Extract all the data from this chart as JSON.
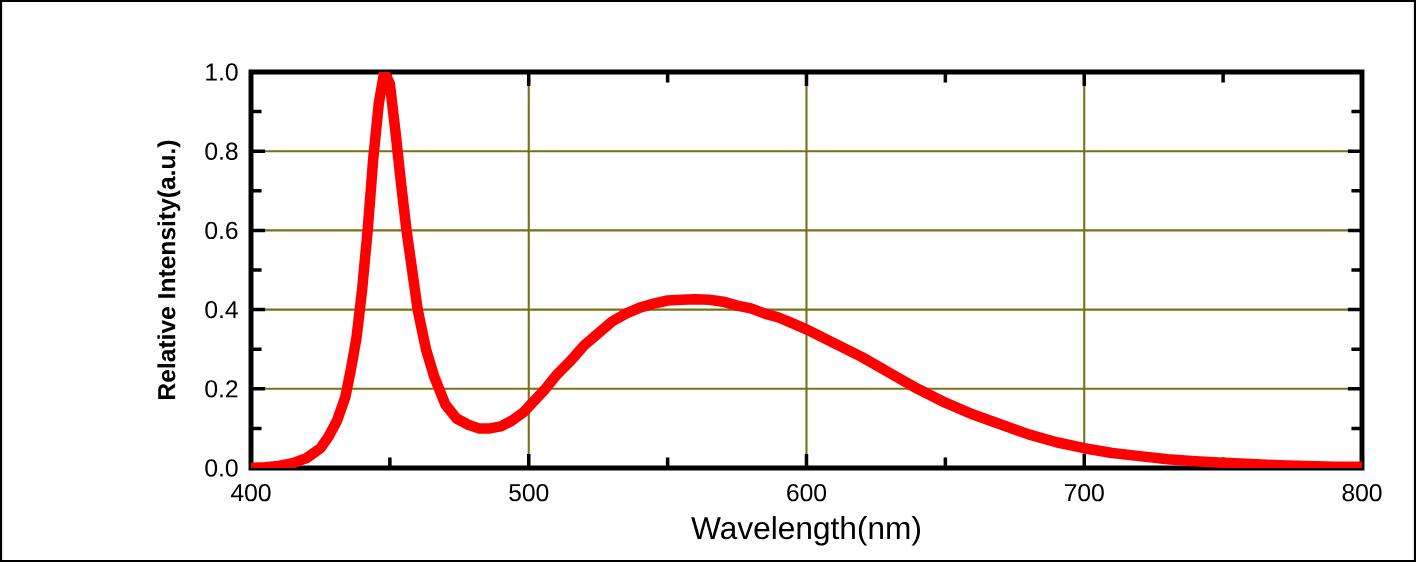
{
  "chart_data": {
    "type": "line",
    "xlabel": "Wavelength(nm)",
    "ylabel": "Relative Intensity(a.u.)",
    "x": [
      400,
      405,
      410,
      415,
      420,
      425,
      428,
      431,
      434,
      436,
      438,
      440,
      442,
      444,
      446,
      448,
      450,
      452,
      454,
      456,
      458,
      460,
      463,
      466,
      470,
      474,
      478,
      482,
      486,
      490,
      494,
      498,
      502,
      506,
      510,
      515,
      520,
      525,
      530,
      535,
      540,
      545,
      550,
      555,
      560,
      565,
      570,
      575,
      580,
      585,
      590,
      595,
      600,
      610,
      620,
      630,
      640,
      650,
      660,
      670,
      680,
      690,
      700,
      710,
      720,
      730,
      740,
      750,
      760,
      770,
      780,
      790,
      800
    ],
    "series": [
      {
        "color": "#ff0000",
        "values": [
          0.0,
          0.002,
          0.005,
          0.012,
          0.025,
          0.05,
          0.08,
          0.12,
          0.18,
          0.25,
          0.33,
          0.45,
          0.6,
          0.78,
          0.92,
          1.0,
          0.97,
          0.85,
          0.72,
          0.6,
          0.5,
          0.4,
          0.3,
          0.23,
          0.16,
          0.125,
          0.11,
          0.1,
          0.1,
          0.105,
          0.12,
          0.14,
          0.17,
          0.2,
          0.235,
          0.27,
          0.31,
          0.34,
          0.37,
          0.39,
          0.405,
          0.415,
          0.423,
          0.425,
          0.426,
          0.425,
          0.42,
          0.41,
          0.403,
          0.39,
          0.38,
          0.365,
          0.35,
          0.315,
          0.28,
          0.24,
          0.2,
          0.165,
          0.135,
          0.11,
          0.085,
          0.065,
          0.05,
          0.038,
          0.03,
          0.022,
          0.017,
          0.013,
          0.01,
          0.007,
          0.005,
          0.003,
          0.003
        ]
      }
    ],
    "xlim": [
      400,
      800
    ],
    "ylim": [
      0,
      1
    ],
    "xticks": [
      400,
      500,
      600,
      700,
      800
    ],
    "yticks": [
      {
        "value": 0,
        "label": "0.0"
      },
      {
        "value": 0.2,
        "label": "0.2"
      },
      {
        "value": 0.4,
        "label": "0.4"
      },
      {
        "value": 0.6,
        "label": "0.6"
      },
      {
        "value": 0.8,
        "label": "0.8"
      },
      {
        "value": 1,
        "label": "1.0"
      }
    ],
    "grid": true,
    "marker": "none",
    "line_style": "solid"
  }
}
